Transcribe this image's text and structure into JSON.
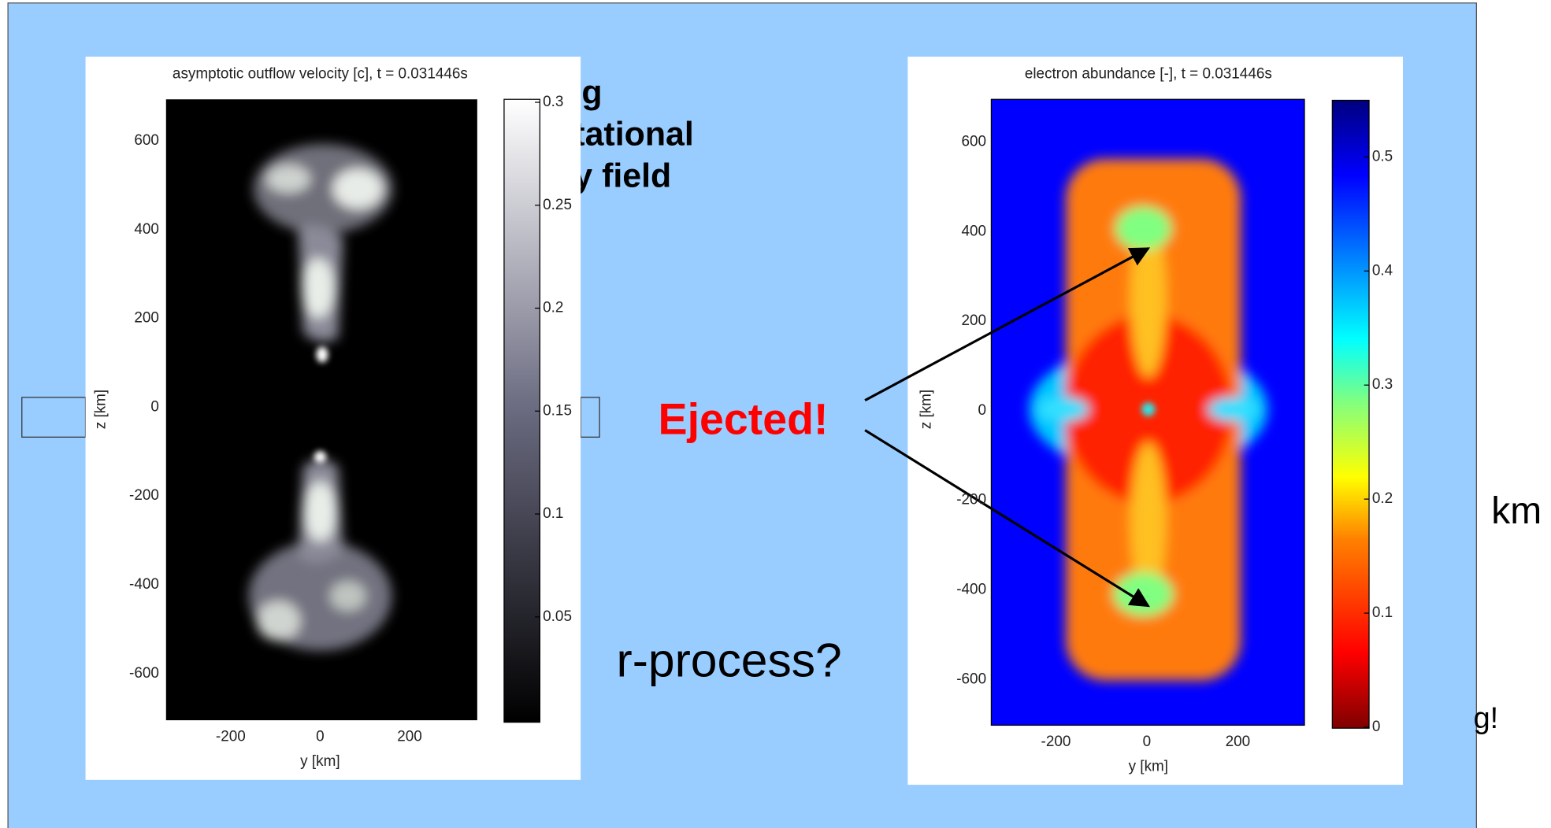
{
  "slide": {
    "fragments": [
      "g",
      "tational",
      "y field"
    ],
    "ejected": "Ejected!",
    "rprocess": "r-process?",
    "km": "km",
    "tail": "g!"
  },
  "panels": [
    {
      "title": "asymptotic outflow velocity [c], t = 0.031446s",
      "yticks": [
        "600",
        "400",
        "200",
        "0",
        "-200",
        "-400",
        "-600"
      ],
      "xticks": [
        "-200",
        "0",
        "200"
      ],
      "xlabel": "y [km]",
      "ylabel": "z [km]",
      "colorbar": [
        "0.3",
        "0.25",
        "0.2",
        "0.15",
        "0.1",
        "0.05"
      ]
    },
    {
      "title": "electron abundance [-], t = 0.031446s",
      "yticks": [
        "600",
        "400",
        "200",
        "0",
        "-200",
        "-400",
        "-600"
      ],
      "xticks": [
        "-200",
        "0",
        "200"
      ],
      "xlabel": "y [km]",
      "ylabel": "z [km]",
      "colorbar": [
        "0.5",
        "0.4",
        "0.3",
        "0.2",
        "0.1",
        "0"
      ]
    }
  ]
}
